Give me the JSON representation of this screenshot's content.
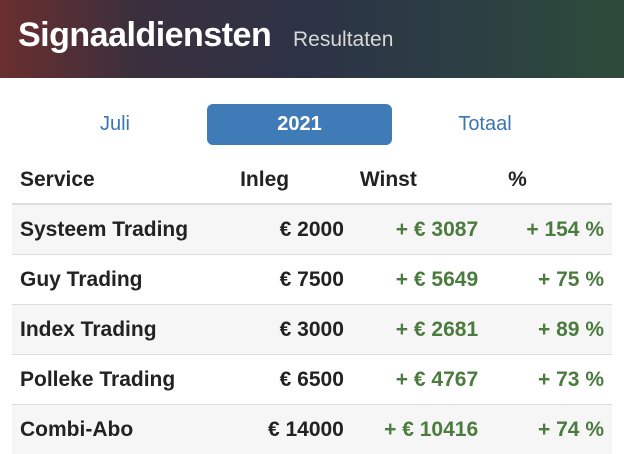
{
  "header": {
    "title": "Signaaldiensten",
    "subtitle": "Resultaten"
  },
  "tabs": [
    "Juli",
    "2021",
    "Totaal"
  ],
  "table": {
    "columns": [
      "Service",
      "Inleg",
      "Winst",
      "%"
    ],
    "rows": [
      [
        "Systeem Trading",
        "€ 2000",
        "+ € 3087",
        "+ 154 %"
      ],
      [
        "Guy Trading",
        "€ 7500",
        "+ € 5649",
        "+ 75 %"
      ],
      [
        "Index Trading",
        "€ 3000",
        "+ € 2681",
        "+ 89 %"
      ],
      [
        "Polleke Trading",
        "€ 6500",
        "+ € 4767",
        "+ 73 %"
      ],
      [
        "Combi-Abo",
        "€ 14000",
        "+ € 10416",
        "+ 74 %"
      ]
    ]
  }
}
